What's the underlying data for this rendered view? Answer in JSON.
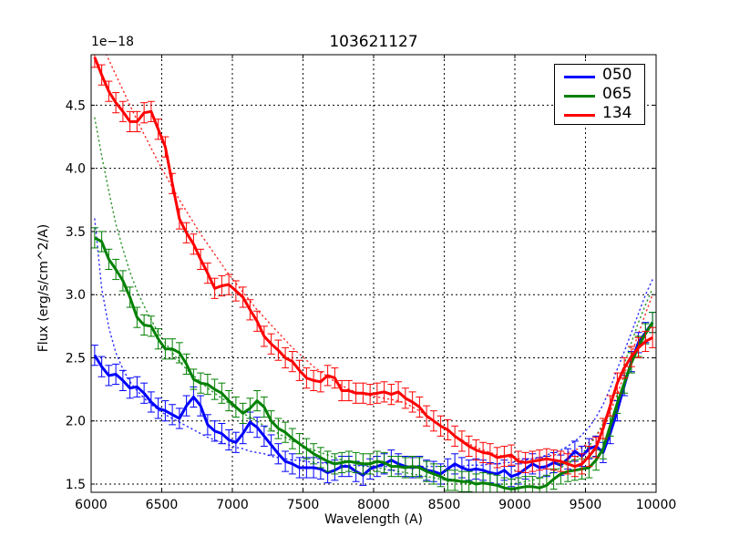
{
  "chart_data": {
    "type": "line",
    "title": "103621127",
    "xlabel": "Wavelength (A)",
    "ylabel": "Flux (erg/s/cm^2/A)",
    "y_offset_label": "1e−18",
    "xlim": [
      6000,
      10000
    ],
    "ylim": [
      1.435,
      4.9
    ],
    "y_scale_multiplier": 1e-18,
    "x_ticks": [
      6000,
      6500,
      7000,
      7500,
      8000,
      8500,
      9000,
      9500,
      10000
    ],
    "x_tick_labels": [
      "6000",
      "6500",
      "7000",
      "7500",
      "8000",
      "8500",
      "9000",
      "9500",
      "10000"
    ],
    "y_ticks": [
      1.5,
      2.0,
      2.5,
      3.0,
      3.5,
      4.0,
      4.5
    ],
    "y_tick_labels": [
      "1.5",
      "2.0",
      "2.5",
      "3.0",
      "3.5",
      "4.0",
      "4.5"
    ],
    "grid": true,
    "grid_style": "dotted",
    "legend_position": "upper right",
    "error_bars": true,
    "x": [
      6025,
      6075,
      6125,
      6175,
      6225,
      6275,
      6325,
      6375,
      6425,
      6475,
      6525,
      6575,
      6625,
      6675,
      6725,
      6775,
      6825,
      6875,
      6925,
      6975,
      7025,
      7075,
      7125,
      7175,
      7225,
      7275,
      7325,
      7375,
      7425,
      7475,
      7525,
      7575,
      7625,
      7675,
      7725,
      7775,
      7825,
      7875,
      7925,
      7975,
      8025,
      8075,
      8125,
      8175,
      8225,
      8275,
      8325,
      8375,
      8425,
      8475,
      8525,
      8575,
      8625,
      8675,
      8725,
      8775,
      8825,
      8875,
      8925,
      8975,
      9025,
      9075,
      9125,
      9175,
      9225,
      9275,
      9325,
      9375,
      9425,
      9475,
      9525,
      9575,
      9625,
      9675,
      9725,
      9775,
      9825,
      9875,
      9925,
      9975
    ],
    "series": [
      {
        "name": "050",
        "color": "#0000ff",
        "values": [
          2.52,
          2.43,
          2.36,
          2.37,
          2.32,
          2.26,
          2.27,
          2.22,
          2.15,
          2.1,
          2.08,
          2.05,
          2.02,
          2.12,
          2.19,
          2.12,
          1.97,
          1.92,
          1.9,
          1.85,
          1.83,
          1.9,
          1.99,
          1.95,
          1.88,
          1.81,
          1.74,
          1.68,
          1.66,
          1.63,
          1.63,
          1.63,
          1.62,
          1.59,
          1.61,
          1.64,
          1.64,
          1.6,
          1.57,
          1.62,
          1.64,
          1.66,
          1.69,
          1.66,
          1.64,
          1.63,
          1.64,
          1.61,
          1.6,
          1.58,
          1.62,
          1.66,
          1.63,
          1.61,
          1.62,
          1.61,
          1.59,
          1.58,
          1.61,
          1.56,
          1.58,
          1.62,
          1.66,
          1.63,
          1.64,
          1.67,
          1.65,
          1.7,
          1.76,
          1.72,
          1.78,
          1.8,
          1.75,
          1.9,
          2.08,
          2.28,
          2.47,
          2.62,
          2.7,
          2.78
        ],
        "fit_model_dotted": true
      },
      {
        "name": "065",
        "color": "#008000",
        "values": [
          3.45,
          3.42,
          3.28,
          3.2,
          3.11,
          2.98,
          2.82,
          2.76,
          2.75,
          2.65,
          2.57,
          2.57,
          2.54,
          2.45,
          2.33,
          2.3,
          2.29,
          2.25,
          2.22,
          2.16,
          2.11,
          2.06,
          2.1,
          2.16,
          2.11,
          2.0,
          1.94,
          1.91,
          1.86,
          1.82,
          1.78,
          1.74,
          1.71,
          1.68,
          1.66,
          1.67,
          1.68,
          1.67,
          1.66,
          1.66,
          1.68,
          1.67,
          1.64,
          1.64,
          1.63,
          1.64,
          1.63,
          1.6,
          1.58,
          1.56,
          1.53,
          1.53,
          1.52,
          1.52,
          1.5,
          1.51,
          1.5,
          1.49,
          1.47,
          1.46,
          1.47,
          1.48,
          1.48,
          1.47,
          1.49,
          1.54,
          1.58,
          1.6,
          1.61,
          1.62,
          1.63,
          1.69,
          1.78,
          1.96,
          2.14,
          2.3,
          2.46,
          2.59,
          2.69,
          2.78
        ],
        "fit_model_dotted": true
      },
      {
        "name": "134",
        "color": "#ff0000",
        "values": [
          4.88,
          4.74,
          4.61,
          4.52,
          4.45,
          4.37,
          4.37,
          4.44,
          4.45,
          4.31,
          4.17,
          3.88,
          3.6,
          3.49,
          3.4,
          3.28,
          3.17,
          3.05,
          3.07,
          3.08,
          3.03,
          2.98,
          2.88,
          2.79,
          2.67,
          2.61,
          2.56,
          2.5,
          2.47,
          2.4,
          2.34,
          2.32,
          2.31,
          2.36,
          2.34,
          2.24,
          2.24,
          2.22,
          2.22,
          2.21,
          2.22,
          2.23,
          2.21,
          2.23,
          2.18,
          2.15,
          2.11,
          2.04,
          2.0,
          1.96,
          1.93,
          1.88,
          1.84,
          1.8,
          1.77,
          1.75,
          1.74,
          1.71,
          1.72,
          1.73,
          1.68,
          1.67,
          1.68,
          1.69,
          1.7,
          1.69,
          1.68,
          1.66,
          1.64,
          1.66,
          1.72,
          1.79,
          1.94,
          2.12,
          2.3,
          2.42,
          2.51,
          2.58,
          2.63,
          2.66
        ],
        "fit_model_dotted": true
      }
    ],
    "fits": [
      {
        "name": "050 fit",
        "color": "#0000ff",
        "values": [
          3.6,
          3.05,
          2.74,
          2.54,
          2.41,
          2.31,
          2.24,
          2.18,
          2.13,
          2.09,
          2.05,
          2.02,
          1.99,
          1.96,
          1.93,
          1.9,
          1.87,
          1.85,
          1.83,
          1.81,
          1.79,
          1.78,
          1.76,
          1.75,
          1.74,
          1.72,
          1.71,
          1.7,
          1.69,
          1.69,
          1.68,
          1.67,
          1.67,
          1.66,
          1.66,
          1.65,
          1.65,
          1.65,
          1.64,
          1.64,
          1.64,
          1.64,
          1.64,
          1.64,
          1.64,
          1.64,
          1.64,
          1.64,
          1.64,
          1.64,
          1.64,
          1.64,
          1.64,
          1.65,
          1.65,
          1.65,
          1.66,
          1.66,
          1.67,
          1.67,
          1.68,
          1.69,
          1.7,
          1.71,
          1.73,
          1.75,
          1.77,
          1.8,
          1.84,
          1.89,
          1.95,
          2.03,
          2.13,
          2.26,
          2.41,
          2.55,
          2.7,
          2.85,
          3.0,
          3.12
        ]
      },
      {
        "name": "065 fit",
        "color": "#008000",
        "values": [
          4.4,
          4.1,
          3.82,
          3.56,
          3.36,
          3.18,
          3.03,
          2.91,
          2.8,
          2.7,
          2.62,
          2.54,
          2.47,
          2.41,
          2.36,
          2.31,
          2.26,
          2.22,
          2.18,
          2.14,
          2.1,
          2.06,
          2.03,
          2.0,
          1.96,
          1.93,
          1.9,
          1.87,
          1.84,
          1.82,
          1.79,
          1.77,
          1.75,
          1.73,
          1.71,
          1.69,
          1.68,
          1.66,
          1.65,
          1.64,
          1.63,
          1.62,
          1.61,
          1.6,
          1.59,
          1.58,
          1.57,
          1.56,
          1.55,
          1.54,
          1.53,
          1.52,
          1.51,
          1.5,
          1.5,
          1.5,
          1.5,
          1.5,
          1.5,
          1.5,
          1.51,
          1.52,
          1.53,
          1.55,
          1.57,
          1.6,
          1.63,
          1.66,
          1.7,
          1.74,
          1.8,
          1.88,
          1.98,
          2.12,
          2.28,
          2.45,
          2.62,
          2.78,
          2.92,
          3.05
        ]
      },
      {
        "name": "134 fit",
        "color": "#ff0000",
        "values": [
          5.1,
          4.98,
          4.86,
          4.74,
          4.62,
          4.5,
          4.38,
          4.27,
          4.16,
          4.05,
          3.95,
          3.85,
          3.75,
          3.66,
          3.57,
          3.48,
          3.4,
          3.32,
          3.24,
          3.16,
          3.09,
          3.02,
          2.95,
          2.88,
          2.82,
          2.76,
          2.7,
          2.64,
          2.58,
          2.53,
          2.48,
          2.43,
          2.39,
          2.35,
          2.31,
          2.28,
          2.25,
          2.23,
          2.21,
          2.2,
          2.19,
          2.18,
          2.17,
          2.16,
          2.14,
          2.11,
          2.08,
          2.04,
          2.0,
          1.96,
          1.92,
          1.88,
          1.85,
          1.82,
          1.79,
          1.77,
          1.75,
          1.73,
          1.72,
          1.71,
          1.7,
          1.7,
          1.7,
          1.71,
          1.72,
          1.73,
          1.74,
          1.75,
          1.77,
          1.79,
          1.83,
          1.88,
          1.96,
          2.07,
          2.21,
          2.37,
          2.53,
          2.69,
          2.85,
          3.0
        ]
      }
    ],
    "error_bar_halfwidth": 0.08
  },
  "legend": {
    "items": [
      {
        "label": "050",
        "color": "#0000ff"
      },
      {
        "label": "065",
        "color": "#008000"
      },
      {
        "label": "134",
        "color": "#ff0000"
      }
    ]
  }
}
